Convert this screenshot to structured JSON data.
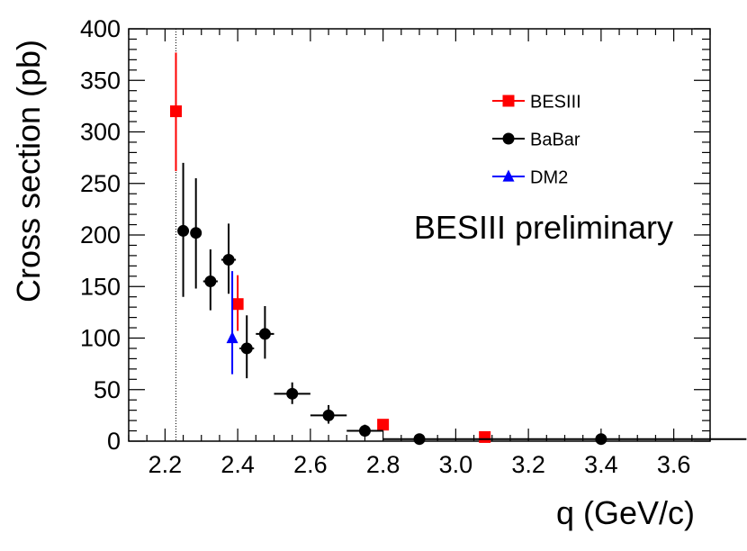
{
  "chart_data": {
    "type": "scatter",
    "xlabel": "q (GeV/c)",
    "ylabel": "Cross section (pb)",
    "annotation": "BESIII preliminary",
    "xlim": [
      2.1,
      3.7
    ],
    "ylim": [
      0,
      400
    ],
    "x_ticks": [
      "2.2",
      "2.4",
      "2.6",
      "2.8",
      "3.0",
      "3.2",
      "3.4",
      "3.6"
    ],
    "y_ticks": [
      "0",
      "50",
      "100",
      "150",
      "200",
      "250",
      "300",
      "350",
      "400"
    ],
    "threshold_x": 2.23,
    "legend_position": "top-right",
    "series": [
      {
        "name": "BESIII",
        "color": "#ff0000",
        "marker": "square",
        "points": [
          {
            "x": 2.23,
            "y": 320,
            "ylo": 262,
            "yhi": 377,
            "xerr": 0
          },
          {
            "x": 2.4,
            "y": 133,
            "ylo": 107,
            "yhi": 161,
            "xerr": 0
          },
          {
            "x": 2.8,
            "y": 16,
            "ylo": 12,
            "yhi": 20,
            "xerr": 0
          },
          {
            "x": 3.08,
            "y": 4,
            "ylo": 2,
            "yhi": 6,
            "xerr": 0
          }
        ]
      },
      {
        "name": "BaBar",
        "color": "#000000",
        "marker": "circle",
        "points": [
          {
            "x": 2.25,
            "y": 204,
            "ylo": 140,
            "yhi": 270,
            "xerr": 0.01
          },
          {
            "x": 2.285,
            "y": 202,
            "ylo": 148,
            "yhi": 255,
            "xerr": 0.015
          },
          {
            "x": 2.325,
            "y": 155,
            "ylo": 127,
            "yhi": 186,
            "xerr": 0.02
          },
          {
            "x": 2.375,
            "y": 176,
            "ylo": 143,
            "yhi": 211,
            "xerr": 0.02
          },
          {
            "x": 2.425,
            "y": 90,
            "ylo": 61,
            "yhi": 122,
            "xerr": 0.02
          },
          {
            "x": 2.475,
            "y": 104,
            "ylo": 80,
            "yhi": 131,
            "xerr": 0.025
          },
          {
            "x": 2.55,
            "y": 46,
            "ylo": 36,
            "yhi": 57,
            "xerr": 0.05
          },
          {
            "x": 2.65,
            "y": 25,
            "ylo": 17,
            "yhi": 35,
            "xerr": 0.05
          },
          {
            "x": 2.75,
            "y": 10,
            "ylo": 5,
            "yhi": 16,
            "xerr": 0.05
          },
          {
            "x": 2.9,
            "y": 2,
            "ylo": 1,
            "yhi": 4,
            "xerr": 0.1
          },
          {
            "x": 3.4,
            "y": 2,
            "ylo": 1,
            "yhi": 3,
            "xerr": 0.4
          }
        ]
      },
      {
        "name": "DM2",
        "color": "#0000ff",
        "marker": "triangle",
        "points": [
          {
            "x": 2.385,
            "y": 100,
            "ylo": 65,
            "yhi": 165,
            "xerr": 0
          }
        ]
      }
    ]
  }
}
